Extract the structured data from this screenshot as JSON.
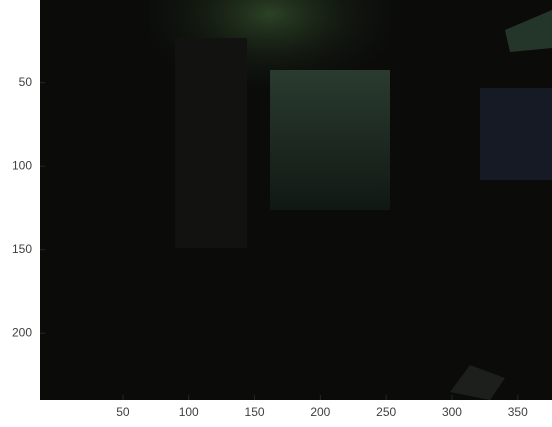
{
  "chart_data": {
    "type": "image",
    "xlim": [
      -13,
      376
    ],
    "ylim": [
      0.5,
      240
    ],
    "xticks": [
      50,
      100,
      150,
      200,
      250,
      300,
      350
    ],
    "yticks": [
      50,
      100,
      150,
      200
    ]
  }
}
